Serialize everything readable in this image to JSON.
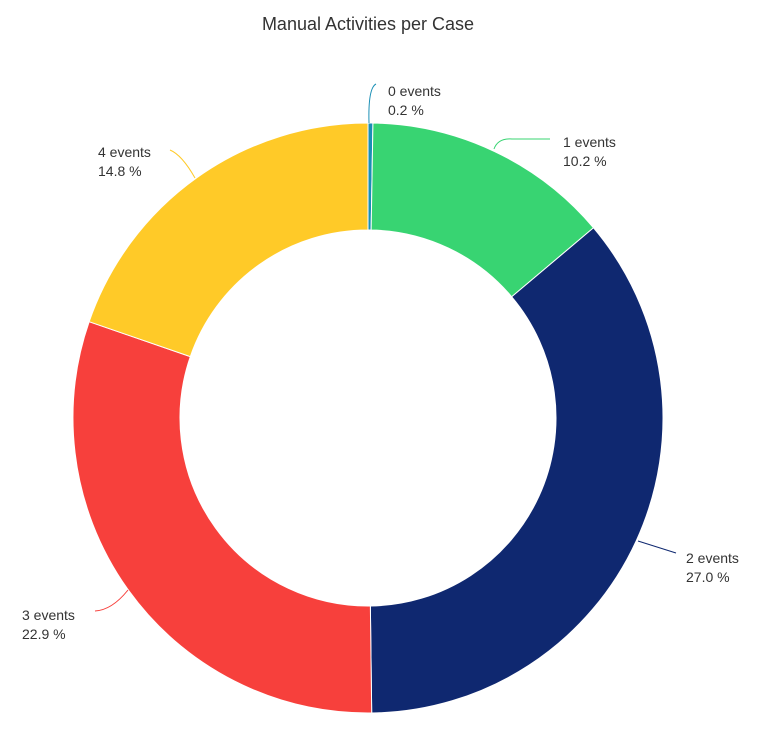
{
  "chart_data": {
    "type": "pie",
    "variant": "donut",
    "title": "Manual Activities per Case",
    "slices": [
      {
        "label": "0 events",
        "value_label": "0.2 %",
        "value": 0.2,
        "color": "#1a8fb5"
      },
      {
        "label": "1 events",
        "value_label": "10.2 %",
        "value": 10.2,
        "color": "#38d472"
      },
      {
        "label": "2 events",
        "value_label": "27.0 %",
        "value": 27.0,
        "color": "#0f2870"
      },
      {
        "label": "3 events",
        "value_label": "22.9 %",
        "value": 22.9,
        "color": "#f7403c"
      },
      {
        "label": "4 events",
        "value_label": "14.8 %",
        "value": 14.8,
        "color": "#ffca28"
      }
    ],
    "legend": "none"
  }
}
